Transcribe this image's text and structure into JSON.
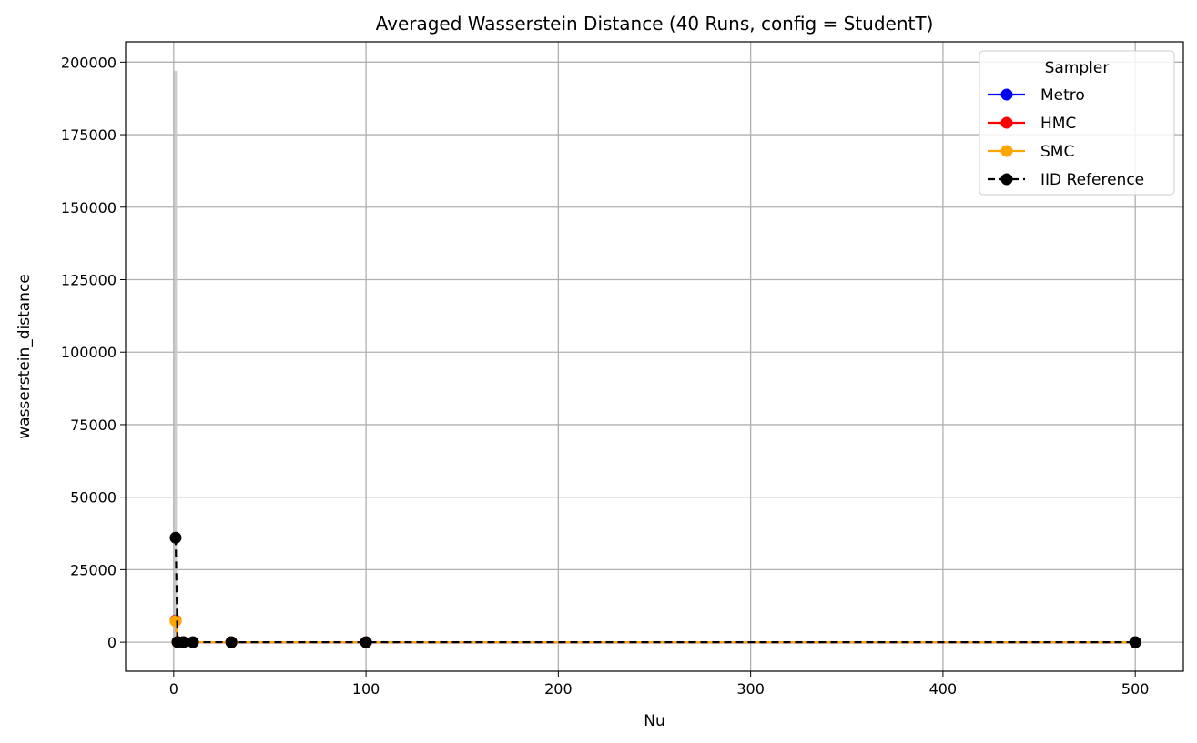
{
  "chart_data": {
    "type": "line",
    "title": "Averaged Wasserstein Distance (40 Runs, config = StudentT)",
    "xlabel": "Nu",
    "ylabel": "wasserstein_distance",
    "xlim": [
      -25,
      525
    ],
    "ylim": [
      -10000,
      207000
    ],
    "x_ticks": [
      0,
      100,
      200,
      300,
      400,
      500
    ],
    "y_ticks": [
      0,
      25000,
      50000,
      75000,
      100000,
      125000,
      150000,
      175000,
      200000
    ],
    "grid": true,
    "legend": {
      "title": "Sampler",
      "position": "top-right"
    },
    "x": [
      1,
      2,
      5,
      10,
      30,
      100,
      500
    ],
    "series": [
      {
        "name": "Metro",
        "color": "#0000ff",
        "linestyle": "solid",
        "marker": "circle",
        "values": [
          7500,
          50,
          20,
          10,
          5,
          3,
          2
        ]
      },
      {
        "name": "HMC",
        "color": "#ff0000",
        "linestyle": "solid",
        "marker": "circle",
        "values": [
          7400,
          50,
          20,
          10,
          5,
          3,
          2
        ]
      },
      {
        "name": "SMC",
        "color": "#ffa500",
        "linestyle": "solid",
        "marker": "circle",
        "values": [
          7300,
          50,
          20,
          10,
          5,
          3,
          2
        ]
      },
      {
        "name": "IID Reference",
        "color": "#000000",
        "linestyle": "dashed",
        "marker": "circle",
        "values": [
          36000,
          80,
          30,
          15,
          6,
          3,
          2
        ]
      }
    ],
    "error_band": {
      "x": 1,
      "low": 0,
      "high": 197000,
      "color": "#c8c8c8"
    }
  }
}
